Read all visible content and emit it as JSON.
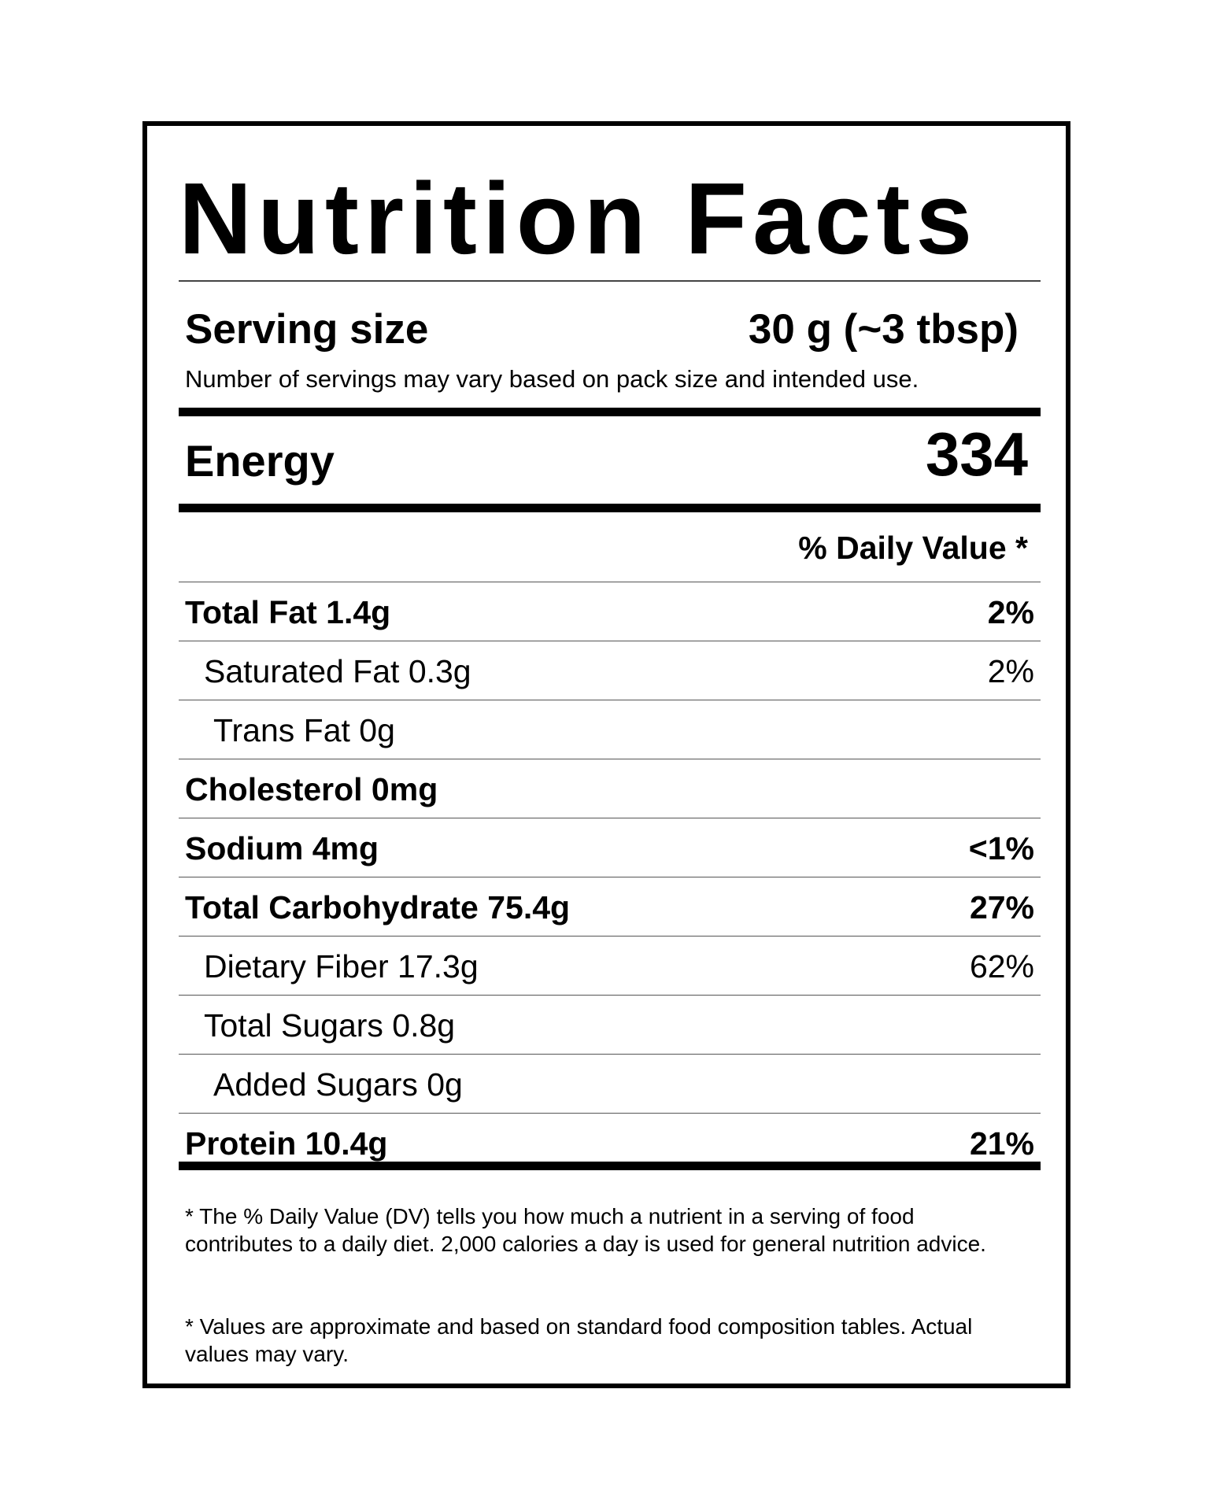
{
  "label": {
    "title": "Nutrition Facts",
    "serving": {
      "label": "Serving size",
      "value": "30 g (~3 tbsp)",
      "note": "Number of servings may vary based on pack size and intended use."
    },
    "energy": {
      "label": "Energy",
      "value": "334"
    },
    "daily_value_header": "% Daily Value *",
    "nutrients": [
      {
        "name": "Total Fat 1.4g",
        "pct": "2%"
      },
      {
        "name": "Saturated Fat 0.3g",
        "pct": "2%"
      },
      {
        "name": "Trans Fat 0g",
        "pct": ""
      },
      {
        "name": "Cholesterol 0mg",
        "pct": ""
      },
      {
        "name": "Sodium 4mg",
        "pct": "<1%"
      },
      {
        "name": "Total Carbohydrate 75.4g",
        "pct": "27%"
      },
      {
        "name": "Dietary Fiber 17.3g",
        "pct": "62%"
      },
      {
        "name": "Total Sugars 0.8g",
        "pct": ""
      },
      {
        "name": "Added Sugars 0g",
        "pct": ""
      },
      {
        "name": "Protein 10.4g",
        "pct": "21%"
      }
    ],
    "footnotes": [
      "* The % Daily Value (DV) tells you how much a nutrient in a serving of food contributes to a daily diet. 2,000 calories a day is used for general nutrition advice.",
      "* Values are approximate and based on standard food composition tables. Actual values may vary."
    ]
  }
}
